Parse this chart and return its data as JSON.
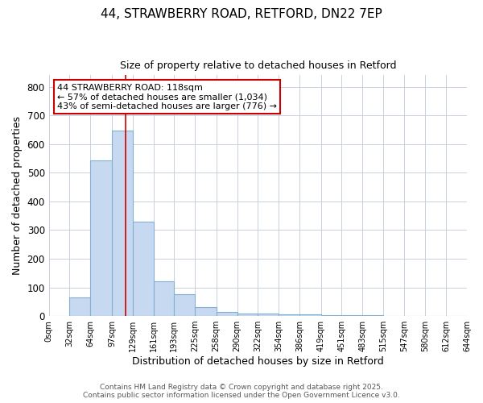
{
  "title_line1": "44, STRAWBERRY ROAD, RETFORD, DN22 7EP",
  "title_line2": "Size of property relative to detached houses in Retford",
  "xlabel": "Distribution of detached houses by size in Retford",
  "ylabel": "Number of detached properties",
  "bin_edges": [
    0,
    32,
    64,
    97,
    129,
    161,
    193,
    225,
    258,
    290,
    322,
    354,
    386,
    419,
    451,
    483,
    515,
    547,
    580,
    612,
    644
  ],
  "bar_heights": [
    0,
    65,
    543,
    648,
    328,
    120,
    76,
    30,
    15,
    10,
    8,
    5,
    5,
    4,
    3,
    2,
    1,
    0,
    0,
    0
  ],
  "bar_color": "#c6d9f0",
  "bar_edgecolor": "#82afd3",
  "grid_color": "#c8d0dc",
  "property_line_x": 118,
  "property_line_color": "#cc0000",
  "annotation_text": "44 STRAWBERRY ROAD: 118sqm\n← 57% of detached houses are smaller (1,034)\n43% of semi-detached houses are larger (776) →",
  "annotation_box_edgecolor": "#cc0000",
  "ylim": [
    0,
    840
  ],
  "yticks": [
    0,
    100,
    200,
    300,
    400,
    500,
    600,
    700,
    800
  ],
  "tick_labels": [
    "0sqm",
    "32sqm",
    "64sqm",
    "97sqm",
    "129sqm",
    "161sqm",
    "193sqm",
    "225sqm",
    "258sqm",
    "290sqm",
    "322sqm",
    "354sqm",
    "386sqm",
    "419sqm",
    "451sqm",
    "483sqm",
    "515sqm",
    "547sqm",
    "580sqm",
    "612sqm",
    "644sqm"
  ],
  "footer_line1": "Contains HM Land Registry data © Crown copyright and database right 2025.",
  "footer_line2": "Contains public sector information licensed under the Open Government Licence v3.0.",
  "background_color": "#ffffff",
  "plot_bg_color": "#ffffff"
}
